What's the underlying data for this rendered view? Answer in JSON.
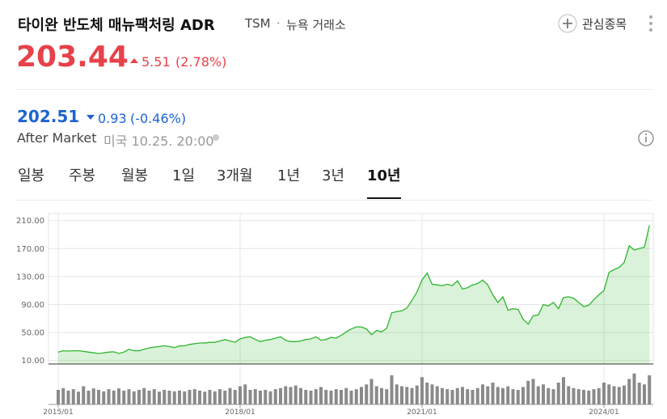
{
  "header": {
    "title": "타이완 반도체 매뉴팩처링 ADR",
    "ticker": "TSM",
    "separator": "·",
    "exchange": "뉴욕 거래소",
    "watch": "관심종목",
    "price": "203.44",
    "change": "5.51",
    "change_pct": "(2.78%)",
    "after_price": "202.51",
    "after_change": "0.93",
    "after_change_pct": "(-0.46%)",
    "after_label": "After Market",
    "after_time": "미국 10.25. 20:00"
  },
  "tabs": [
    "일봉",
    "주봉",
    "월봉",
    "1일",
    "3개월",
    "1년",
    "3년",
    "10년"
  ],
  "chart_data": {
    "type": "line",
    "x": [
      "2015/01",
      "2015/02",
      "2015/03",
      "2015/04",
      "2015/05",
      "2015/06",
      "2015/07",
      "2015/08",
      "2015/09",
      "2015/10",
      "2015/11",
      "2015/12",
      "2016/01",
      "2016/02",
      "2016/03",
      "2016/04",
      "2016/05",
      "2016/06",
      "2016/07",
      "2016/08",
      "2016/09",
      "2016/10",
      "2016/11",
      "2016/12",
      "2017/01",
      "2017/02",
      "2017/03",
      "2017/04",
      "2017/05",
      "2017/06",
      "2017/07",
      "2017/08",
      "2017/09",
      "2017/10",
      "2017/11",
      "2017/12",
      "2018/01",
      "2018/02",
      "2018/03",
      "2018/04",
      "2018/05",
      "2018/06",
      "2018/07",
      "2018/08",
      "2018/09",
      "2018/10",
      "2018/11",
      "2018/12",
      "2019/01",
      "2019/02",
      "2019/03",
      "2019/04",
      "2019/05",
      "2019/06",
      "2019/07",
      "2019/08",
      "2019/09",
      "2019/10",
      "2019/11",
      "2019/12",
      "2020/01",
      "2020/02",
      "2020/03",
      "2020/04",
      "2020/05",
      "2020/06",
      "2020/07",
      "2020/08",
      "2020/09",
      "2020/10",
      "2020/11",
      "2020/12",
      "2021/01",
      "2021/02",
      "2021/03",
      "2021/04",
      "2021/05",
      "2021/06",
      "2021/07",
      "2021/08",
      "2021/09",
      "2021/10",
      "2021/11",
      "2021/12",
      "2022/01",
      "2022/02",
      "2022/03",
      "2022/04",
      "2022/05",
      "2022/06",
      "2022/07",
      "2022/08",
      "2022/09",
      "2022/10",
      "2022/11",
      "2022/12",
      "2023/01",
      "2023/02",
      "2023/03",
      "2023/04",
      "2023/05",
      "2023/06",
      "2023/07",
      "2023/08",
      "2023/09",
      "2023/10",
      "2023/11",
      "2023/12",
      "2024/01",
      "2024/02",
      "2024/03",
      "2024/04",
      "2024/05",
      "2024/06",
      "2024/07",
      "2024/08",
      "2024/09",
      "2024/10"
    ],
    "values": [
      22,
      24,
      23.5,
      24,
      24,
      23,
      22,
      21,
      20,
      21,
      22,
      22.5,
      20,
      22,
      26,
      24,
      24,
      26,
      28,
      29,
      30,
      31,
      30,
      28.5,
      31,
      31,
      33,
      34,
      35,
      35,
      36,
      36,
      38,
      40,
      38,
      36,
      41,
      43,
      44,
      40,
      37,
      39,
      40,
      42,
      44,
      39,
      37,
      37,
      38,
      40,
      41,
      44,
      39,
      40,
      43,
      42,
      46,
      51,
      55,
      58,
      58,
      55,
      47,
      53,
      51,
      56,
      78,
      80,
      81,
      85,
      96,
      108,
      125,
      135,
      119,
      118,
      117,
      119,
      117,
      124,
      112,
      114,
      118,
      120,
      125,
      118,
      104,
      93,
      101,
      82,
      84,
      83,
      69,
      62,
      74,
      75,
      90,
      88,
      93,
      84,
      100,
      101,
      99,
      93,
      87,
      89,
      97,
      104,
      110,
      136,
      140,
      143,
      150,
      174,
      168,
      170,
      172,
      203
    ],
    "color": "#2fb52f",
    "volume": [
      40,
      45,
      38,
      42,
      35,
      50,
      38,
      44,
      40,
      36,
      42,
      38,
      44,
      38,
      42,
      36,
      40,
      45,
      38,
      42,
      35,
      40,
      38,
      36,
      38,
      36,
      40,
      42,
      38,
      35,
      40,
      36,
      42,
      38,
      45,
      40,
      50,
      55,
      40,
      42,
      38,
      40,
      36,
      42,
      45,
      50,
      48,
      52,
      45,
      40,
      38,
      42,
      48,
      40,
      38,
      42,
      40,
      45,
      38,
      42,
      48,
      55,
      70,
      50,
      45,
      42,
      80,
      55,
      50,
      48,
      45,
      52,
      75,
      60,
      55,
      50,
      45,
      42,
      40,
      45,
      48,
      42,
      40,
      45,
      55,
      50,
      60,
      48,
      45,
      50,
      42,
      40,
      48,
      65,
      70,
      50,
      55,
      45,
      42,
      60,
      75,
      50,
      45,
      42,
      40,
      38,
      42,
      45,
      60,
      55,
      50,
      48,
      52,
      70,
      85,
      60,
      55,
      80
    ],
    "volume_color": "#8a8a8a",
    "volume_ylim": [
      0,
      100
    ],
    "ylim": [
      5,
      220
    ],
    "yticks": [
      {
        "value": 10,
        "label": "10.00"
      },
      {
        "value": 50,
        "label": "50.00"
      },
      {
        "value": 90,
        "label": "90.00"
      },
      {
        "value": 130,
        "label": "130.00"
      },
      {
        "value": 170,
        "label": "170.00"
      },
      {
        "value": 210,
        "label": "210.00"
      }
    ],
    "xticks": [
      "2015/01",
      "2018/01",
      "2021/01",
      "2024/01"
    ],
    "grid": true
  }
}
